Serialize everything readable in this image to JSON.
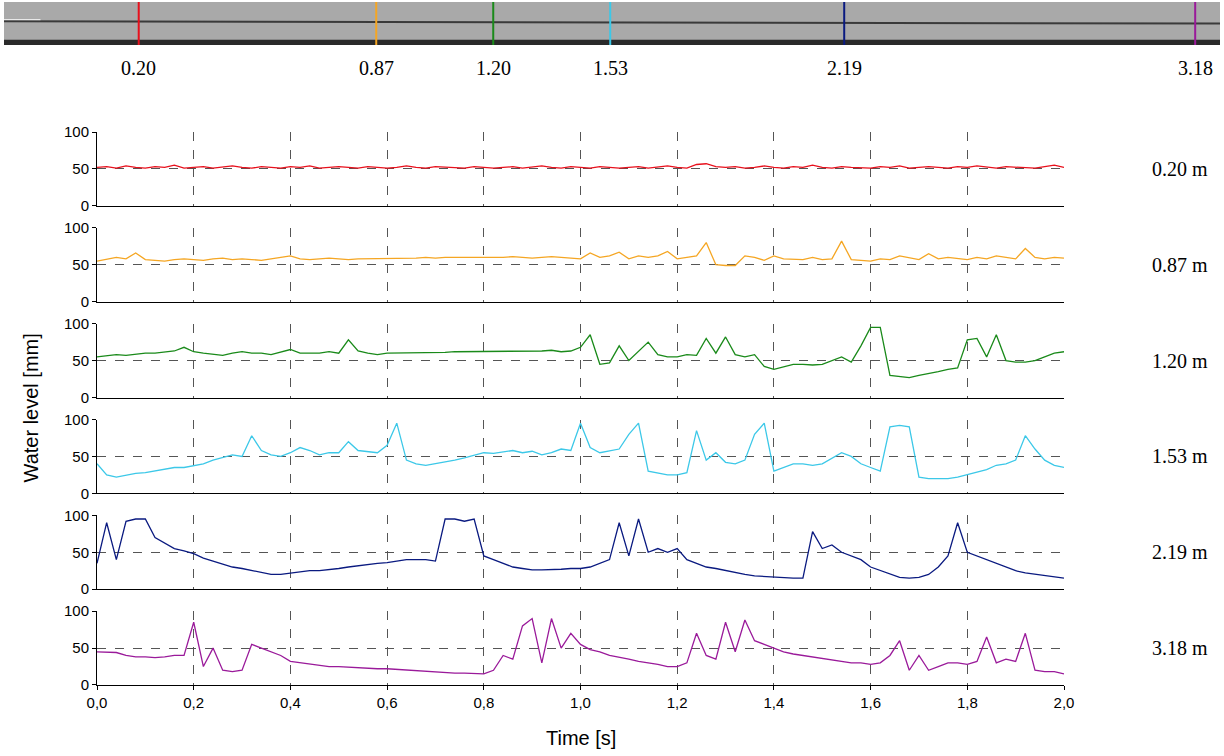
{
  "chart_data": {
    "type": "line",
    "xlabel": "Time [s]",
    "ylabel": "Water level [mm]",
    "grid": true,
    "xlim": [
      0,
      2
    ],
    "xticks": [
      {
        "value": 0,
        "label": "0,0"
      },
      {
        "value": 0.2,
        "label": "0,2"
      },
      {
        "value": 0.4,
        "label": "0,4"
      },
      {
        "value": 0.6,
        "label": "0,6"
      },
      {
        "value": 0.8,
        "label": "0,8"
      },
      {
        "value": 1,
        "label": "1,0"
      },
      {
        "value": 1.2,
        "label": "1,2"
      },
      {
        "value": 1.4,
        "label": "1,4"
      },
      {
        "value": 1.6,
        "label": "1,6"
      },
      {
        "value": 1.8,
        "label": "1,8"
      },
      {
        "value": 2,
        "label": "2,0"
      }
    ],
    "ylim": [
      0,
      100
    ],
    "yticks": [
      0,
      50,
      100
    ],
    "x": [
      0,
      0.02,
      0.04,
      0.06,
      0.08,
      0.1,
      0.12,
      0.14,
      0.16,
      0.18,
      0.2,
      0.22,
      0.24,
      0.26,
      0.28,
      0.3,
      0.32,
      0.34,
      0.36,
      0.38,
      0.4,
      0.42,
      0.44,
      0.46,
      0.48,
      0.5,
      0.52,
      0.54,
      0.56,
      0.58,
      0.6,
      0.62,
      0.64,
      0.66,
      0.68,
      0.7,
      0.72,
      0.74,
      0.76,
      0.78,
      0.8,
      0.82,
      0.84,
      0.86,
      0.88,
      0.9,
      0.92,
      0.94,
      0.96,
      0.98,
      1,
      1.02,
      1.04,
      1.06,
      1.08,
      1.1,
      1.12,
      1.14,
      1.16,
      1.18,
      1.2,
      1.22,
      1.24,
      1.26,
      1.28,
      1.3,
      1.32,
      1.34,
      1.36,
      1.38,
      1.4,
      1.42,
      1.44,
      1.46,
      1.48,
      1.5,
      1.52,
      1.54,
      1.56,
      1.58,
      1.6,
      1.62,
      1.64,
      1.66,
      1.68,
      1.7,
      1.72,
      1.74,
      1.76,
      1.78,
      1.8,
      1.82,
      1.84,
      1.86,
      1.88,
      1.9,
      1.92,
      1.94,
      1.96,
      1.98,
      2
    ],
    "series": [
      {
        "name": "0.20 m",
        "color": "#e8101c",
        "values": [
          52,
          53,
          51,
          54,
          52,
          51,
          53,
          52,
          55,
          51,
          52,
          53,
          51,
          52,
          54,
          52,
          51,
          53,
          52,
          51,
          53,
          52,
          54,
          51,
          52,
          53,
          52,
          51,
          53,
          52,
          51,
          52,
          54,
          52,
          51,
          53,
          52,
          52,
          51,
          53,
          52,
          51,
          52,
          53,
          51,
          52,
          54,
          52,
          51,
          53,
          52,
          51,
          53,
          52,
          51,
          52,
          53,
          51,
          52,
          54,
          52,
          51,
          56,
          57,
          53,
          52,
          53,
          51,
          52,
          54,
          52,
          51,
          53,
          52,
          55,
          52,
          51,
          53,
          52,
          52,
          51,
          53,
          52,
          54,
          51,
          52,
          53,
          52,
          51,
          53,
          52,
          54,
          52,
          51,
          53,
          52,
          52,
          51,
          53,
          55,
          52
        ]
      },
      {
        "name": "0.87 m",
        "color": "#f5a623",
        "values": [
          55,
          57,
          60,
          58,
          66,
          57,
          56,
          55,
          57,
          58,
          57,
          56,
          58,
          59,
          57,
          58,
          57,
          56,
          58,
          60,
          62,
          58,
          57,
          58,
          59,
          58,
          57,
          58,
          58,
          59,
          59,
          58,
          59,
          59,
          60,
          59,
          60,
          60,
          59,
          60,
          60,
          60,
          60,
          61,
          60,
          59,
          60,
          61,
          60,
          59,
          58,
          66,
          60,
          62,
          67,
          58,
          62,
          60,
          62,
          68,
          58,
          60,
          62,
          80,
          50,
          49,
          49,
          62,
          60,
          56,
          62,
          58,
          58,
          57,
          60,
          57,
          58,
          82,
          57,
          56,
          55,
          58,
          57,
          62,
          60,
          57,
          65,
          58,
          60,
          58,
          57,
          60,
          58,
          62,
          60,
          58,
          72,
          60,
          58,
          60,
          59
        ]
      },
      {
        "name": "1.20 m",
        "color": "#1a8a1a",
        "values": [
          55,
          57,
          58,
          57,
          59,
          60,
          60,
          62,
          63,
          68,
          62,
          60,
          58,
          57,
          60,
          62,
          60,
          60,
          58,
          62,
          65,
          60,
          60,
          60,
          62,
          60,
          78,
          63,
          60,
          58,
          60,
          60,
          61,
          61,
          61,
          61,
          61,
          62,
          62,
          62,
          62,
          62,
          62,
          62,
          63,
          63,
          63,
          64,
          62,
          63,
          68,
          85,
          45,
          47,
          70,
          50,
          62,
          75,
          58,
          55,
          55,
          58,
          57,
          80,
          60,
          82,
          58,
          55,
          58,
          42,
          38,
          42,
          45,
          45,
          44,
          45,
          50,
          55,
          48,
          70,
          95,
          95,
          30,
          28,
          27,
          30,
          32,
          35,
          38,
          40,
          78,
          80,
          55,
          85,
          50,
          48,
          48,
          50,
          55,
          60,
          62
        ]
      },
      {
        "name": "1.53 m",
        "color": "#3cc8e8",
        "values": [
          40,
          25,
          22,
          25,
          27,
          28,
          30,
          32,
          35,
          35,
          38,
          40,
          45,
          48,
          52,
          50,
          78,
          58,
          52,
          50,
          55,
          62,
          58,
          52,
          55,
          55,
          70,
          58,
          56,
          55,
          65,
          95,
          45,
          40,
          38,
          40,
          42,
          45,
          48,
          52,
          55,
          54,
          56,
          58,
          55,
          57,
          52,
          55,
          60,
          58,
          95,
          62,
          55,
          58,
          60,
          80,
          95,
          30,
          28,
          25,
          25,
          28,
          85,
          45,
          55,
          42,
          40,
          45,
          80,
          95,
          30,
          35,
          40,
          40,
          38,
          40,
          48,
          55,
          50,
          40,
          35,
          30,
          90,
          92,
          90,
          22,
          20,
          20,
          20,
          22,
          25,
          28,
          32,
          38,
          40,
          45,
          78,
          60,
          45,
          38,
          35
        ]
      },
      {
        "name": "2.19 m",
        "color": "#0a1a80",
        "values": [
          35,
          90,
          40,
          92,
          95,
          95,
          70,
          62,
          55,
          52,
          48,
          42,
          38,
          35,
          30,
          28,
          25,
          22,
          20,
          20,
          22,
          23,
          25,
          25,
          26,
          28,
          30,
          32,
          34,
          35,
          36,
          38,
          40,
          40,
          40,
          38,
          95,
          95,
          92,
          95,
          45,
          40,
          35,
          30,
          28,
          26,
          26,
          26,
          27,
          28,
          28,
          30,
          35,
          40,
          90,
          45,
          95,
          50,
          55,
          50,
          55,
          40,
          35,
          30,
          28,
          25,
          22,
          20,
          18,
          17,
          16,
          16,
          15,
          15,
          78,
          55,
          60,
          50,
          45,
          40,
          30,
          25,
          20,
          16,
          15,
          16,
          20,
          30,
          45,
          90,
          50,
          45,
          40,
          35,
          30,
          25,
          22,
          20,
          18,
          16,
          15
        ]
      },
      {
        "name": "3.18 m",
        "color": "#9a1a9a",
        "values": [
          45,
          45,
          44,
          40,
          38,
          38,
          37,
          38,
          40,
          40,
          85,
          25,
          50,
          20,
          18,
          20,
          55,
          50,
          45,
          40,
          32,
          30,
          28,
          26,
          25,
          25,
          24,
          24,
          23,
          22,
          22,
          21,
          20,
          20,
          19,
          18,
          17,
          16,
          16,
          16,
          15,
          20,
          40,
          35,
          80,
          90,
          30,
          90,
          50,
          70,
          55,
          48,
          45,
          40,
          38,
          35,
          32,
          30,
          28,
          25,
          25,
          30,
          70,
          40,
          35,
          85,
          45,
          88,
          60,
          55,
          50,
          45,
          42,
          40,
          38,
          36,
          35,
          32,
          30,
          30,
          28,
          30,
          40,
          60,
          20,
          40,
          20,
          25,
          30,
          30,
          28,
          32,
          65,
          30,
          35,
          32,
          70,
          20,
          18,
          18,
          15
        ]
      }
    ],
    "photo": {
      "xlim": [
        -0.18,
        3.25
      ],
      "positions": [
        {
          "value": 0.2,
          "label": "0.20"
        },
        {
          "value": 0.87,
          "label": "0.87"
        },
        {
          "value": 1.2,
          "label": "1.20"
        },
        {
          "value": 1.53,
          "label": "1.53"
        },
        {
          "value": 2.19,
          "label": "2.19"
        },
        {
          "value": 3.18,
          "label": "3.18"
        }
      ]
    }
  }
}
